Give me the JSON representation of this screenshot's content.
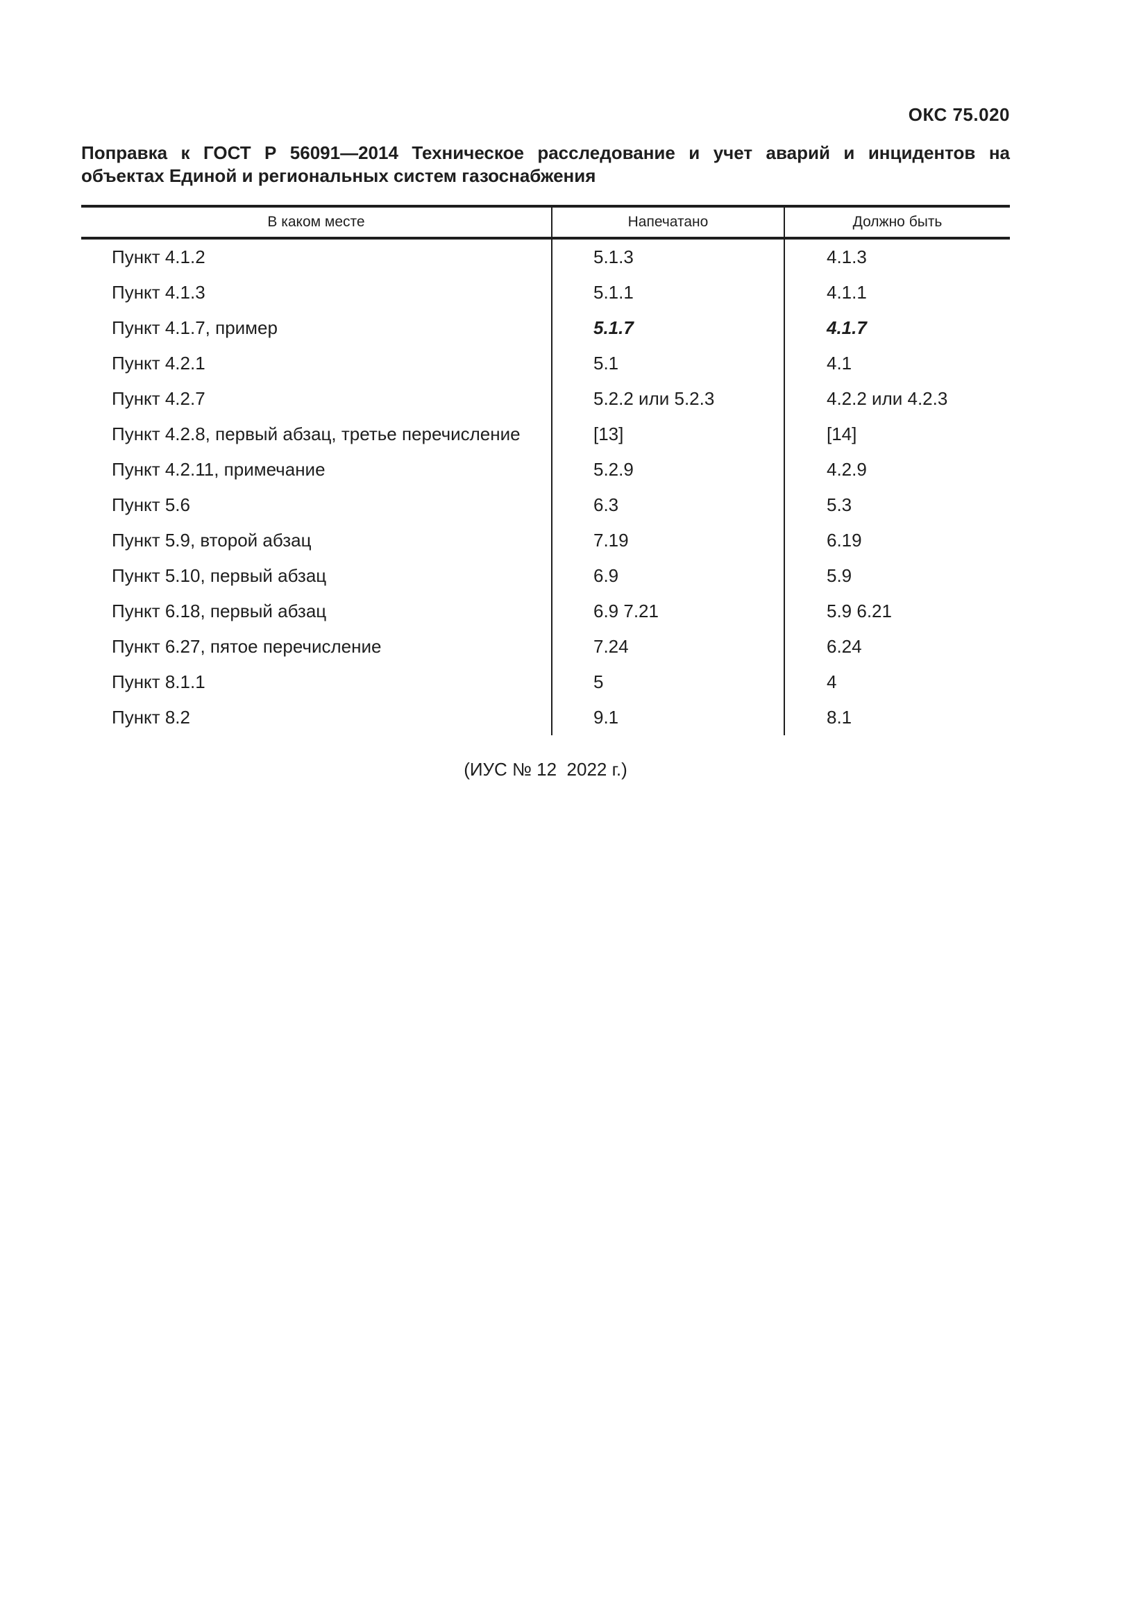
{
  "page": {
    "oks_code": "ОКС 75.020",
    "title_line1": "Поправка к ГОСТ Р 56091—2014 Техническое расследование и учет аварий и инцидентов на",
    "title_line2": "объектах Единой и региональных систем газоснабжения",
    "footer_note": "(ИУС № 12  2022 г.)",
    "text_color": "#1e1e1e",
    "background_color": "#ffffff"
  },
  "table": {
    "columns": [
      "В каком месте",
      "Напечатано",
      "Должно быть"
    ],
    "rows": [
      {
        "place": "Пункт 4.1.2",
        "printed": "5.1.3",
        "should_be": "4.1.3"
      },
      {
        "place": "Пункт 4.1.3",
        "printed": "5.1.1",
        "should_be": "4.1.1"
      },
      {
        "place": "Пункт 4.1.7, пример",
        "printed": "5.1.7",
        "should_be": "4.1.7",
        "emphasis": true
      },
      {
        "place": "Пункт 4.2.1",
        "printed": "5.1",
        "should_be": "4.1"
      },
      {
        "place": "Пункт 4.2.7",
        "printed": "5.2.2 или 5.2.3",
        "should_be": "4.2.2 или 4.2.3"
      },
      {
        "place": "Пункт 4.2.8, первый абзац, третье перечисление",
        "printed": "[13]",
        "should_be": "[14]"
      },
      {
        "place": "Пункт 4.2.11, примечание",
        "printed": "5.2.9",
        "should_be": "4.2.9"
      },
      {
        "place": "Пункт 5.6",
        "printed": "6.3",
        "should_be": "5.3"
      },
      {
        "place": "Пункт 5.9, второй абзац",
        "printed": "7.19",
        "should_be": "6.19"
      },
      {
        "place": "Пункт 5.10, первый абзац",
        "printed": "6.9",
        "should_be": "5.9"
      },
      {
        "place": "Пункт 6.18, первый абзац",
        "printed": "6.9 7.21",
        "should_be": "5.9 6.21"
      },
      {
        "place": "Пункт 6.27, пятое перечисление",
        "printed": "7.24",
        "should_be": "6.24"
      },
      {
        "place": "Пункт 8.1.1",
        "printed": "5",
        "should_be": "4"
      },
      {
        "place": "Пункт 8.2",
        "printed": "9.1",
        "should_be": "8.1"
      }
    ]
  }
}
